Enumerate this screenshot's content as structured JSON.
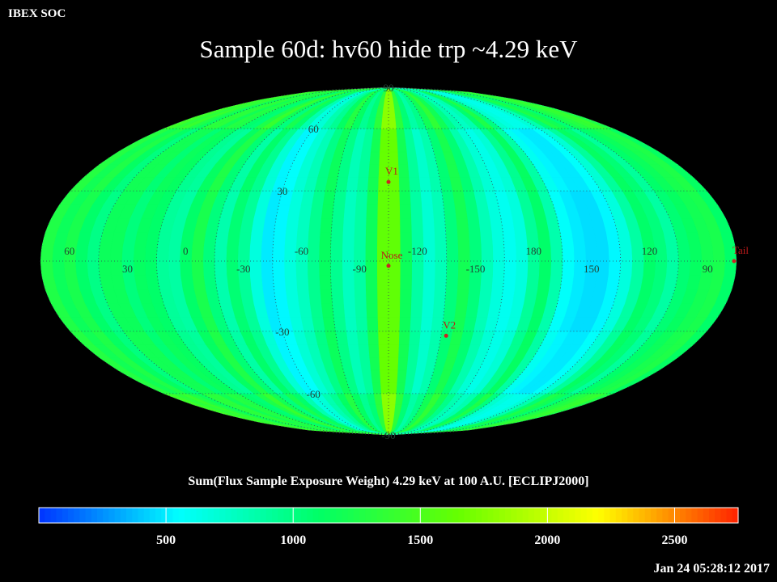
{
  "header": {
    "soc_label": "IBEX SOC",
    "title": "Sample 60d: hv60 hide trp ~4.29 keV"
  },
  "colorbar": {
    "label": "Sum(Flux Sample Exposure Weight)  4.29 keV at 100 A.U. [ECLIPJ2000]",
    "min": 0,
    "max": 2750,
    "ticks": [
      "500",
      "1000",
      "1500",
      "2000",
      "2500"
    ],
    "tick_values": [
      500,
      1000,
      1500,
      2000,
      2500
    ],
    "stops": [
      "#0033ff",
      "#00ffff",
      "#00ff66",
      "#66ff00",
      "#ffff00",
      "#ff2200"
    ]
  },
  "footer": {
    "timestamp": "Jan 24 05:28:12 2017"
  },
  "chart_data": {
    "type": "heatmap",
    "projection": "Mollweide",
    "title": "Sample 60d: hv60 hide trp ~4.29 keV",
    "value_label": "Sum(Flux Sample Exposure Weight)  4.29 keV at 100 A.U. [ECLIPJ2000]",
    "value_range": [
      0,
      2750
    ],
    "center_longitude": -105,
    "longitude_labels": [
      "60",
      "30",
      "0",
      "-30",
      "-60",
      "-90",
      "-120",
      "-150",
      "180",
      "150",
      "120",
      "90"
    ],
    "longitude_label_values": [
      60,
      30,
      0,
      -30,
      -60,
      -90,
      -120,
      -150,
      180,
      150,
      120,
      90
    ],
    "latitude_labels": [
      "90",
      "60",
      "30",
      "-30",
      "-60",
      "-90"
    ],
    "latitude_label_values": [
      90,
      60,
      30,
      -30,
      -60,
      -90
    ],
    "latitude_band_values": [
      {
        "lat": 75,
        "value": 1500
      },
      {
        "lat": 45,
        "value": 1050
      },
      {
        "lat": 15,
        "value": 950
      },
      {
        "lat": -15,
        "value": 950
      },
      {
        "lat": -45,
        "value": 1050
      },
      {
        "lat": -75,
        "value": 1500
      }
    ],
    "longitude_strip_values": [
      {
        "lon": -105,
        "value": 1900
      },
      {
        "lon": -111,
        "value": 1250
      },
      {
        "lon": -99,
        "value": 1250
      },
      {
        "lon": -117,
        "value": 850
      },
      {
        "lon": -93,
        "value": 850
      },
      {
        "lon": -123,
        "value": 600
      },
      {
        "lon": -87,
        "value": 700
      },
      {
        "lon": -129,
        "value": 750
      },
      {
        "lon": -81,
        "value": 950
      },
      {
        "lon": -135,
        "value": 1050
      },
      {
        "lon": -75,
        "value": 1200
      },
      {
        "lon": -141,
        "value": 1300
      },
      {
        "lon": -69,
        "value": 950
      },
      {
        "lon": -147,
        "value": 1050
      },
      {
        "lon": -63,
        "value": 700
      },
      {
        "lon": -153,
        "value": 750
      },
      {
        "lon": -57,
        "value": 550
      },
      {
        "lon": -159,
        "value": 550
      },
      {
        "lon": -51,
        "value": 350
      },
      {
        "lon": -165,
        "value": 450
      },
      {
        "lon": -45,
        "value": 300
      },
      {
        "lon": -171,
        "value": 550
      },
      {
        "lon": -39,
        "value": 550
      },
      {
        "lon": -177,
        "value": 900
      },
      {
        "lon": -33,
        "value": 900
      },
      {
        "lon": 177,
        "value": 1150
      },
      {
        "lon": -27,
        "value": 1100
      },
      {
        "lon": 171,
        "value": 800
      },
      {
        "lon": -21,
        "value": 800
      },
      {
        "lon": 165,
        "value": 400
      },
      {
        "lon": -15,
        "value": 1050
      },
      {
        "lon": 159,
        "value": 300
      },
      {
        "lon": -9,
        "value": 1350
      },
      {
        "lon": 153,
        "value": 250
      },
      {
        "lon": -3,
        "value": 1150
      },
      {
        "lon": 147,
        "value": 250
      },
      {
        "lon": 3,
        "value": 850
      },
      {
        "lon": 141,
        "value": 350
      },
      {
        "lon": 9,
        "value": 900
      },
      {
        "lon": 135,
        "value": 550
      },
      {
        "lon": 15,
        "value": 1150
      },
      {
        "lon": 129,
        "value": 850
      },
      {
        "lon": 21,
        "value": 1200
      },
      {
        "lon": 123,
        "value": 1150
      },
      {
        "lon": 27,
        "value": 1050
      },
      {
        "lon": 117,
        "value": 1050
      },
      {
        "lon": 33,
        "value": 1250
      },
      {
        "lon": 111,
        "value": 850
      },
      {
        "lon": 39,
        "value": 1250
      },
      {
        "lon": 105,
        "value": 1100
      },
      {
        "lon": 45,
        "value": 1000
      },
      {
        "lon": 99,
        "value": 1200
      },
      {
        "lon": 51,
        "value": 1150
      },
      {
        "lon": 93,
        "value": 1300
      },
      {
        "lon": 57,
        "value": 1350
      },
      {
        "lon": 87,
        "value": 1350
      },
      {
        "lon": 63,
        "value": 1250
      },
      {
        "lon": 81,
        "value": 1150
      },
      {
        "lon": 69,
        "value": 1400
      },
      {
        "lon": 75,
        "value": 1500
      }
    ],
    "markers": [
      {
        "label": "V1",
        "lon": -105,
        "lat": 34
      },
      {
        "label": "Nose",
        "lon": -105,
        "lat": -2
      },
      {
        "label": "V2",
        "lon": -138,
        "lat": -32
      },
      {
        "label": "Tail",
        "lon": 75,
        "lat": 0
      }
    ]
  }
}
